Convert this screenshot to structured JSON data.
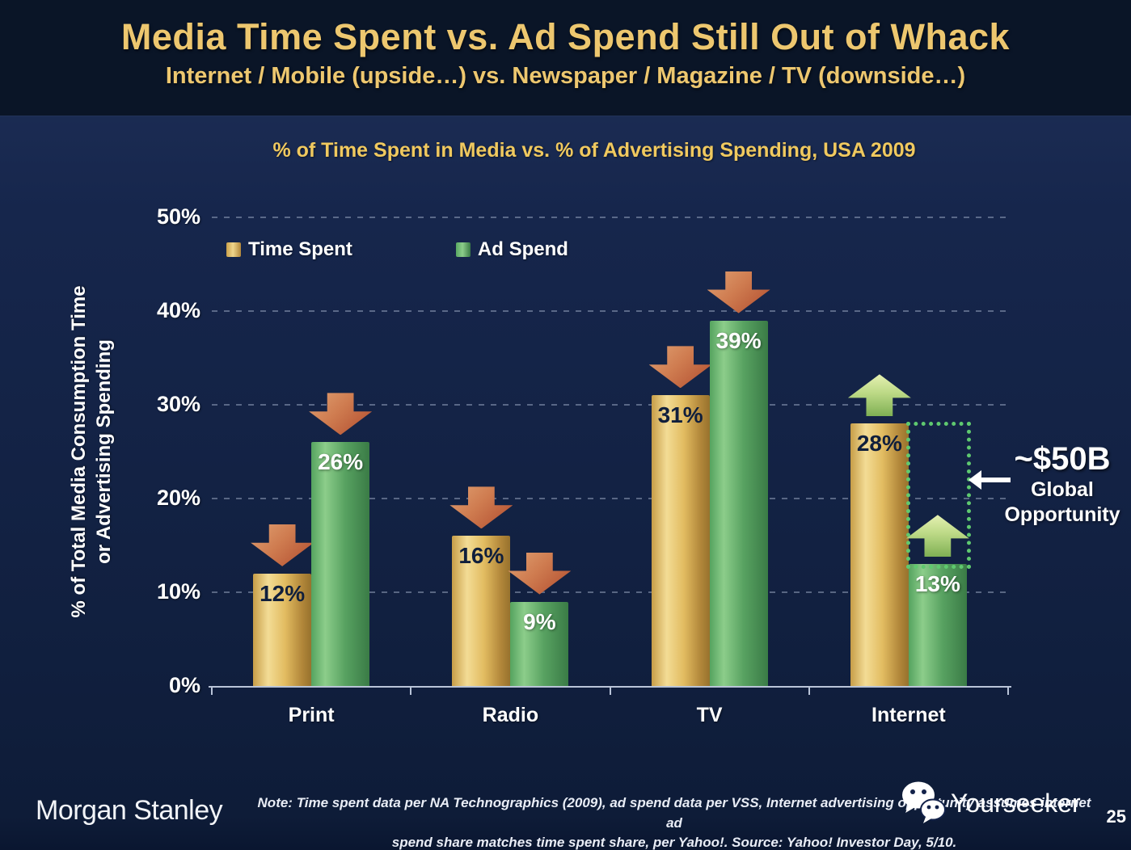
{
  "header": {
    "title": "Media Time Spent vs. Ad Spend Still Out of Whack",
    "subtitle": "Internet / Mobile (upside…) vs. Newspaper / Magazine / TV (downside…)"
  },
  "chart": {
    "title": "% of Time Spent in Media vs. % of Advertising Spending, USA 2009",
    "y_axis_label_line1": "% of Total Media Consumption Time",
    "y_axis_label_line2": "or Advertising Spending",
    "legend": [
      {
        "label": "Time Spent",
        "color": "#d9ac4f"
      },
      {
        "label": "Ad Spend",
        "color": "#4f9d58"
      }
    ]
  },
  "chart_data": {
    "type": "bar",
    "title": "% of Time Spent in Media vs. % of Advertising Spending, USA 2009",
    "ylabel": "% of Total Media Consumption Time or Advertising Spending",
    "xlabel": "",
    "categories": [
      "Print",
      "Radio",
      "TV",
      "Internet"
    ],
    "series": [
      {
        "name": "Time Spent",
        "color": "#d9ac4f",
        "values": [
          12,
          16,
          31,
          28
        ]
      },
      {
        "name": "Ad Spend",
        "color": "#4f9d58",
        "values": [
          26,
          9,
          39,
          13
        ]
      }
    ],
    "value_suffix": "%",
    "ylim": [
      0,
      50
    ],
    "yticks": [
      0,
      10,
      20,
      30,
      40,
      50
    ],
    "ytick_suffix": "%",
    "grid": "dashed-horizontal",
    "legend_position": "top-left-inside",
    "trend_arrows": [
      "down",
      "down",
      "down",
      "up"
    ],
    "annotation": {
      "value": "~$50B",
      "label_line1": "Global",
      "label_line2": "Opportunity",
      "applies_to": "Internet gap between Ad Spend 13% and Time Spent 28%"
    }
  },
  "footer": {
    "logo": "Morgan Stanley",
    "note_line1": "Note: Time spent data per NA Technographics (2009), ad spend data per VSS, Internet advertising opportunity assumes internet ad",
    "note_line2": "spend share matches time spent share, per Yahoo!. Source: Yahoo! Investor Day, 5/10.",
    "watermark": "Yourseeker",
    "page_number": "25"
  },
  "colors": {
    "header_background": "#0a1527",
    "body_background": "#16264c",
    "title_gold": "#edc76f",
    "bar_gold": "#d9ac4f",
    "bar_green": "#4f9d58",
    "down_arrow": "#c56a45",
    "up_arrow": "#b5d27e",
    "dotted_box_green": "#5fc96f",
    "text_white": "#ffffff"
  }
}
